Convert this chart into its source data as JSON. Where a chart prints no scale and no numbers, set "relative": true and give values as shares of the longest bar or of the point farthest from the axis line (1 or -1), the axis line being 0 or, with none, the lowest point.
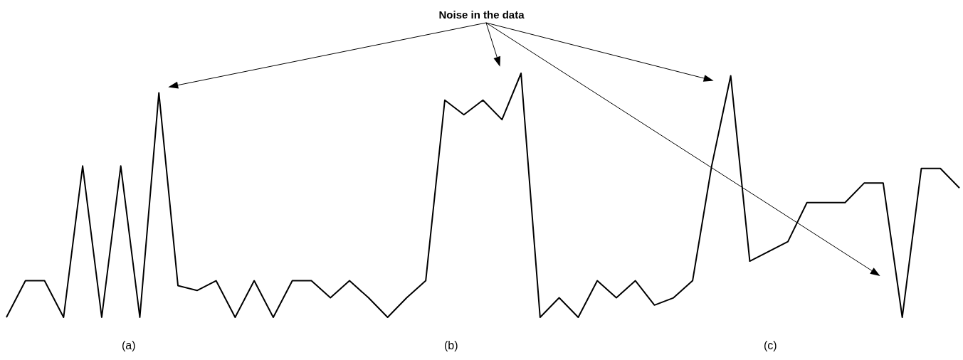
{
  "chart_data": {
    "type": "line",
    "title": "Noise in the data",
    "relative": true,
    "marker": "none",
    "line_style": "solid",
    "categories": [
      null,
      null,
      null,
      null,
      null,
      null,
      null,
      null,
      null,
      null,
      null,
      null,
      null,
      null,
      null,
      null,
      null,
      null,
      null,
      null,
      null,
      null,
      null,
      null,
      null,
      null,
      null,
      null,
      null,
      null,
      null,
      null,
      null,
      null,
      null,
      null,
      null,
      null,
      null,
      null,
      null,
      null,
      null,
      null,
      null,
      null,
      null,
      null,
      null,
      null,
      null
    ],
    "series": [
      {
        "color": "#000000",
        "values": [
          0,
          0.15,
          0.15,
          0,
          0.62,
          0,
          0.62,
          0,
          0.92,
          0.13,
          0.11,
          0.15,
          0,
          0.15,
          0,
          0.15,
          0.15,
          0.08,
          0.15,
          0.08,
          0,
          0.08,
          0.15,
          0.89,
          0.83,
          0.89,
          0.81,
          1,
          0,
          0.08,
          0,
          0.15,
          0.08,
          0.15,
          0.05,
          0.08,
          0.15,
          0.62,
          0.99,
          0.23,
          0.27,
          0.31,
          0.47,
          0.47,
          0.47,
          0.55,
          0.55,
          0,
          0.61,
          0.61,
          0.53
        ]
      }
    ],
    "annotations": [
      "(a)",
      "(b)",
      "(c)"
    ]
  }
}
